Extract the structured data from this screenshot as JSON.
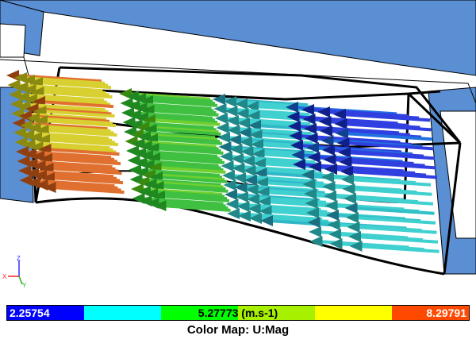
{
  "color_map": {
    "min_label": "2.25754",
    "mid_label": "5.27773 (m.s-1)",
    "max_label": "8.29791",
    "title": "Color Map: U:Mag",
    "colors": [
      "#0000ff",
      "#00ffff",
      "#00ff00",
      "#a6f000",
      "#ffff00",
      "#ff4800"
    ]
  },
  "axes_triad": {
    "x": "X",
    "y": "Y",
    "z": "Z"
  }
}
